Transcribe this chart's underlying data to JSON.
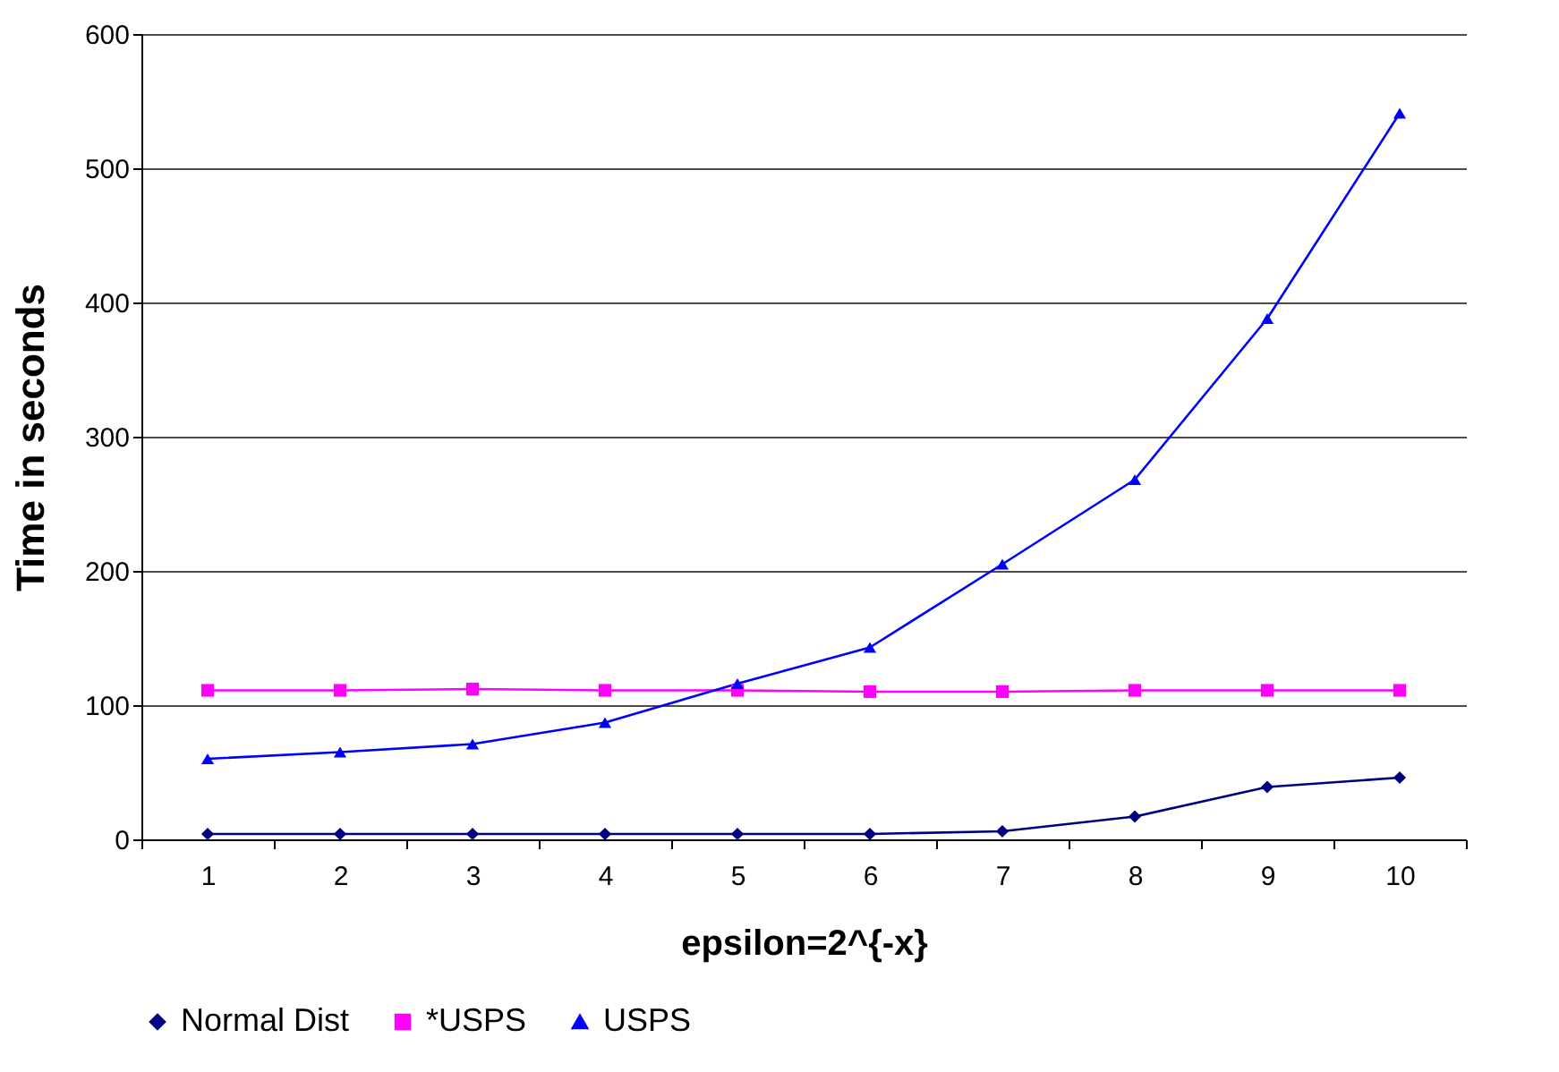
{
  "chart_data": {
    "type": "line",
    "xlabel": "epsilon=2^{-x}",
    "ylabel": "Time in seconds",
    "categories": [
      "1",
      "2",
      "3",
      "4",
      "5",
      "6",
      "7",
      "8",
      "9",
      "10"
    ],
    "ylim": [
      0,
      600
    ],
    "yticks": [
      0,
      100,
      200,
      300,
      400,
      500,
      600
    ],
    "grid": "y",
    "legend": "bottom",
    "series": [
      {
        "name": "Normal Dist",
        "color": "#000080",
        "marker": "diamond",
        "values": [
          4,
          4,
          4,
          4,
          4,
          4,
          6,
          17,
          39,
          46
        ]
      },
      {
        "name": "*USPS",
        "color": "#ff00ff",
        "marker": "square",
        "values": [
          111,
          111,
          112,
          111,
          111,
          110,
          110,
          111,
          111,
          111
        ]
      },
      {
        "name": "USPS",
        "color": "#0000ff",
        "marker": "triangle",
        "values": [
          60,
          65,
          71,
          87,
          116,
          143,
          205,
          268,
          388,
          541
        ]
      }
    ]
  }
}
